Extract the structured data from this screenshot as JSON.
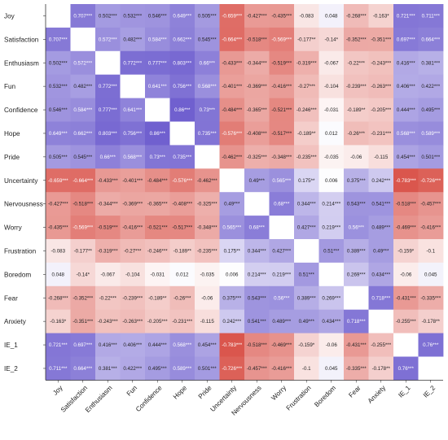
{
  "chart_data": {
    "type": "heatmap",
    "title": "",
    "xlabel": "",
    "ylabel": "",
    "grid": false,
    "legend": "none",
    "color_scale": {
      "negative": "#d9534a",
      "positive": "#6a5acd",
      "neutral": "#ffffff",
      "range": [
        -0.8,
        0.9
      ]
    },
    "rows": [
      "Joy",
      "Satisfaction",
      "Enthusiasm",
      "Fun",
      "Confidence",
      "Hope",
      "Pride",
      "Uncertainty",
      "Nervousness",
      "Worry",
      "Frustration",
      "Boredom",
      "Fear",
      "Anxiety",
      "IE_1",
      "IE_2"
    ],
    "columns": [
      "Joy",
      "Satisfaction",
      "Enthusiasm",
      "Fun",
      "Confidence",
      "Hope",
      "Pride",
      "Uncertainty",
      "Nervousness",
      "Worry",
      "Frustration",
      "Boredom",
      "Fear",
      "Anxiety",
      "IE_1",
      "IE_2"
    ],
    "values": [
      [
        null,
        0.707,
        0.502,
        0.532,
        0.546,
        0.649,
        0.505,
        -0.659,
        -0.427,
        -0.435,
        -0.083,
        0.048,
        -0.268,
        -0.163,
        0.721,
        0.711
      ],
      [
        0.707,
        null,
        0.572,
        0.482,
        0.584,
        0.662,
        0.545,
        -0.664,
        -0.518,
        -0.569,
        -0.177,
        -0.14,
        -0.352,
        -0.351,
        0.697,
        0.664
      ],
      [
        0.502,
        0.572,
        null,
        0.772,
        0.777,
        0.803,
        0.66,
        -0.433,
        -0.344,
        -0.519,
        -0.319,
        -0.067,
        -0.22,
        -0.243,
        0.416,
        0.381
      ],
      [
        0.532,
        0.482,
        0.772,
        null,
        0.641,
        0.756,
        0.568,
        -0.401,
        -0.369,
        -0.416,
        -0.27,
        -0.104,
        -0.239,
        -0.263,
        0.406,
        0.422
      ],
      [
        0.546,
        0.584,
        0.777,
        0.641,
        null,
        0.86,
        0.73,
        -0.484,
        -0.365,
        -0.521,
        -0.246,
        -0.031,
        -0.189,
        -0.205,
        0.444,
        0.495
      ],
      [
        0.649,
        0.662,
        0.803,
        0.756,
        0.86,
        null,
        0.735,
        -0.576,
        -0.408,
        -0.517,
        -0.189,
        0.012,
        -0.26,
        -0.231,
        0.568,
        0.589
      ],
      [
        0.505,
        0.545,
        0.66,
        0.568,
        0.73,
        0.735,
        null,
        -0.462,
        -0.325,
        -0.348,
        -0.235,
        -0.035,
        -0.06,
        -0.115,
        0.454,
        0.501
      ],
      [
        -0.659,
        -0.664,
        -0.433,
        -0.401,
        -0.484,
        -0.576,
        -0.462,
        null,
        0.49,
        0.565,
        0.175,
        0.006,
        0.375,
        0.242,
        -0.783,
        -0.726
      ],
      [
        -0.427,
        -0.518,
        -0.344,
        -0.369,
        -0.365,
        -0.408,
        -0.325,
        0.49,
        null,
        0.68,
        0.344,
        0.214,
        0.543,
        0.541,
        -0.518,
        -0.457
      ],
      [
        -0.435,
        -0.569,
        -0.519,
        -0.416,
        -0.521,
        -0.517,
        -0.348,
        0.565,
        0.68,
        null,
        0.427,
        0.219,
        0.56,
        0.489,
        -0.469,
        -0.416
      ],
      [
        -0.083,
        -0.177,
        -0.319,
        -0.27,
        -0.246,
        -0.189,
        -0.235,
        0.175,
        0.344,
        0.427,
        null,
        0.51,
        0.389,
        0.49,
        -0.159,
        -0.1
      ],
      [
        0.048,
        -0.14,
        -0.067,
        -0.104,
        -0.031,
        0.012,
        -0.035,
        0.006,
        0.214,
        0.219,
        0.51,
        null,
        0.269,
        0.434,
        -0.06,
        0.045
      ],
      [
        -0.268,
        -0.352,
        -0.22,
        -0.239,
        -0.189,
        -0.26,
        -0.06,
        0.375,
        0.543,
        0.56,
        0.389,
        0.269,
        null,
        0.718,
        -0.431,
        -0.335
      ],
      [
        -0.163,
        -0.351,
        -0.243,
        -0.263,
        -0.205,
        -0.231,
        -0.115,
        0.242,
        0.541,
        0.489,
        0.49,
        0.434,
        0.718,
        null,
        -0.255,
        -0.178
      ],
      [
        0.721,
        0.697,
        0.416,
        0.406,
        0.444,
        0.568,
        0.454,
        -0.783,
        -0.518,
        -0.469,
        -0.159,
        -0.06,
        -0.431,
        -0.255,
        null,
        0.76
      ],
      [
        0.711,
        0.664,
        0.381,
        0.422,
        0.495,
        0.589,
        0.501,
        -0.726,
        -0.457,
        -0.416,
        -0.1,
        0.045,
        -0.335,
        -0.178,
        0.76,
        null
      ]
    ],
    "labels": [
      [
        "",
        "0.707***",
        "0.502***",
        "0.532***",
        "0.546***",
        "0.649***",
        "0.505***",
        "-0.659***",
        "-0.427***",
        "-0.435***",
        "-0.083",
        "0.048",
        "-0.268***",
        "-0.163*",
        "0.721***",
        "0.711***"
      ],
      [
        "0.707***",
        "",
        "0.572***",
        "0.482***",
        "0.584***",
        "0.662***",
        "0.545***",
        "-0.664***",
        "-0.518***",
        "-0.569***",
        "-0.177**",
        "-0.14*",
        "-0.352***",
        "-0.351***",
        "0.697***",
        "0.664***"
      ],
      [
        "0.502***",
        "0.572***",
        "",
        "0.772***",
        "0.777***",
        "0.803***",
        "0.66***",
        "-0.433***",
        "-0.344***",
        "-0.519***",
        "-0.319***",
        "-0.067",
        "-0.22***",
        "-0.243***",
        "0.416***",
        "0.381***"
      ],
      [
        "0.532***",
        "0.482***",
        "0.772***",
        "",
        "0.641***",
        "0.756***",
        "0.568***",
        "-0.401***",
        "-0.369***",
        "-0.416***",
        "-0.27***",
        "-0.104",
        "-0.239***",
        "-0.263***",
        "0.406***",
        "0.422***"
      ],
      [
        "0.546***",
        "0.584***",
        "0.777***",
        "0.641***",
        "",
        "0.86***",
        "0.73***",
        "-0.484***",
        "-0.365***",
        "-0.521***",
        "-0.246***",
        "-0.031",
        "-0.189**",
        "-0.205***",
        "0.444***",
        "0.495***"
      ],
      [
        "0.649***",
        "0.662***",
        "0.803***",
        "0.756***",
        "0.86***",
        "",
        "0.735***",
        "-0.576***",
        "-0.408***",
        "-0.517***",
        "-0.189**",
        "0.012",
        "-0.26***",
        "-0.231***",
        "0.568***",
        "0.589***"
      ],
      [
        "0.505***",
        "0.545***",
        "0.66***",
        "0.568***",
        "0.73***",
        "0.735***",
        "",
        "-0.462***",
        "-0.325***",
        "-0.348***",
        "-0.235***",
        "-0.035",
        "-0.06",
        "-0.115",
        "0.454***",
        "0.501***"
      ],
      [
        "-0.659***",
        "-0.664***",
        "-0.433***",
        "-0.401***",
        "-0.484***",
        "-0.576***",
        "-0.462***",
        "",
        "0.49***",
        "0.565***",
        "0.175**",
        "0.006",
        "0.375***",
        "0.242***",
        "-0.783***",
        "-0.726***"
      ],
      [
        "-0.427***",
        "-0.518***",
        "-0.344***",
        "-0.369***",
        "-0.365***",
        "-0.408***",
        "-0.325***",
        "0.49***",
        "",
        "0.68***",
        "0.344***",
        "0.214***",
        "0.543***",
        "0.541***",
        "-0.518***",
        "-0.457***"
      ],
      [
        "-0.435***",
        "-0.569***",
        "-0.519***",
        "-0.416***",
        "-0.521***",
        "-0.517***",
        "-0.348***",
        "0.565***",
        "0.68***",
        "",
        "0.427***",
        "0.219***",
        "0.56***",
        "0.489***",
        "-0.469***",
        "-0.416***"
      ],
      [
        "-0.083",
        "-0.177**",
        "-0.319***",
        "-0.27***",
        "-0.246***",
        "-0.189**",
        "-0.235***",
        "0.175**",
        "0.344***",
        "0.427***",
        "",
        "0.51***",
        "0.389***",
        "0.49***",
        "-0.159*",
        "-0.1"
      ],
      [
        "0.048",
        "-0.14*",
        "-0.067",
        "-0.104",
        "-0.031",
        "0.012",
        "-0.035",
        "0.006",
        "0.214***",
        "0.219***",
        "0.51***",
        "",
        "0.269***",
        "0.434***",
        "-0.06",
        "0.045"
      ],
      [
        "-0.268***",
        "-0.352***",
        "-0.22***",
        "-0.239***",
        "-0.189**",
        "-0.26***",
        "-0.06",
        "0.375***",
        "0.543***",
        "0.56***",
        "0.389***",
        "0.269***",
        "",
        "0.718***",
        "-0.431***",
        "-0.335***"
      ],
      [
        "-0.163*",
        "-0.351***",
        "-0.243***",
        "-0.263***",
        "-0.205***",
        "-0.231***",
        "-0.115",
        "0.242***",
        "0.541***",
        "0.489***",
        "0.49***",
        "0.434***",
        "0.718***",
        "",
        "-0.255***",
        "-0.178**"
      ],
      [
        "0.721***",
        "0.697***",
        "0.416***",
        "0.406***",
        "0.444***",
        "0.568***",
        "0.454***",
        "-0.783***",
        "-0.518***",
        "-0.469***",
        "-0.159*",
        "-0.06",
        "-0.431***",
        "-0.255***",
        "",
        "0.76***"
      ],
      [
        "0.711***",
        "0.664***",
        "0.381***",
        "0.422***",
        "0.495***",
        "0.589***",
        "0.501***",
        "-0.726***",
        "-0.457***",
        "-0.416***",
        "-0.1",
        "0.045",
        "-0.335***",
        "-0.178**",
        "0.76***",
        ""
      ]
    ]
  }
}
